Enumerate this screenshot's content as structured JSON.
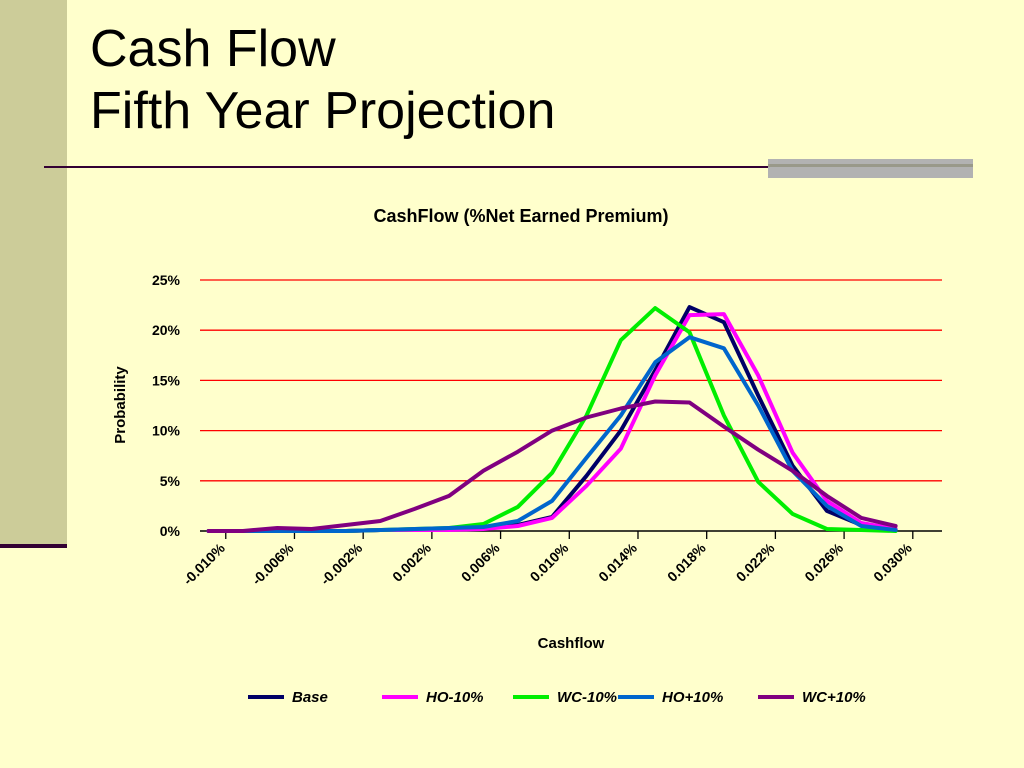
{
  "slide": {
    "title_line1": "Cash Flow",
    "title_line2": "Fifth Year Projection",
    "colors": {
      "background": "#ffffcc",
      "sidebar": "#cccc99",
      "rule": "#330033",
      "accent": "#b2b2b2"
    }
  },
  "chart_data": {
    "type": "line",
    "title": "CashFlow (%Net Earned Premium)",
    "xlabel": "Cashflow",
    "ylabel": "Probability",
    "y_tick_labels": [
      "0%",
      "5%",
      "10%",
      "15%",
      "20%",
      "25%"
    ],
    "y_ticks": [
      0,
      5,
      10,
      15,
      20,
      25
    ],
    "ylim": [
      0,
      25
    ],
    "x_tick_labels": [
      "-0.010%",
      "-0.006%",
      "-0.002%",
      "0.002%",
      "0.006%",
      "0.010%",
      "0.014%",
      "0.018%",
      "0.022%",
      "0.026%",
      "0.030%"
    ],
    "x_ticks": [
      -0.01,
      -0.006,
      -0.002,
      0.002,
      0.006,
      0.01,
      0.014,
      0.018,
      0.022,
      0.026,
      0.03
    ],
    "xlim": [
      -0.0115,
      0.0317
    ],
    "x": [
      -0.011,
      -0.009,
      -0.007,
      -0.005,
      -0.003,
      -0.001,
      0.001,
      0.003,
      0.005,
      0.007,
      0.009,
      0.011,
      0.013,
      0.015,
      0.017,
      0.019,
      0.021,
      0.023,
      0.025,
      0.027,
      0.029
    ],
    "grid": true,
    "gridline_color": "#ff0000",
    "legend_position": "bottom",
    "series": [
      {
        "name": "Base",
        "color": "#000066",
        "values": [
          0,
          0,
          0,
          0,
          0,
          0.1,
          0.1,
          0.2,
          0.3,
          0.6,
          1.4,
          5.5,
          10.0,
          16.0,
          22.3,
          20.8,
          13.5,
          6.5,
          2.0,
          0.6,
          0.1
        ]
      },
      {
        "name": "HO-10%",
        "color": "#ff00ff",
        "values": [
          0,
          0,
          0,
          0,
          0,
          0.1,
          0.1,
          0.1,
          0.2,
          0.5,
          1.3,
          4.5,
          8.2,
          15.5,
          21.5,
          21.6,
          15.5,
          7.8,
          3.0,
          0.8,
          0.2
        ]
      },
      {
        "name": "WC-10%",
        "color": "#00ee00",
        "values": [
          0,
          0,
          0,
          0,
          0,
          0.1,
          0.2,
          0.3,
          0.7,
          2.4,
          5.8,
          11.5,
          19.0,
          22.2,
          19.8,
          11.5,
          4.9,
          1.7,
          0.2,
          0.1,
          0
        ]
      },
      {
        "name": "HO+10%",
        "color": "#0066cc",
        "values": [
          0,
          0,
          0,
          0,
          0,
          0.1,
          0.2,
          0.3,
          0.4,
          1.0,
          3.0,
          7.3,
          11.5,
          16.8,
          19.3,
          18.2,
          12.5,
          6.0,
          2.5,
          0.5,
          0.1
        ]
      },
      {
        "name": "WC+10%",
        "color": "#800080",
        "values": [
          0,
          0,
          0.3,
          0.2,
          0.6,
          1.0,
          2.2,
          3.5,
          6.0,
          7.9,
          10.0,
          11.3,
          12.2,
          12.9,
          12.8,
          10.4,
          8.1,
          6.0,
          3.5,
          1.3,
          0.5
        ]
      }
    ]
  }
}
